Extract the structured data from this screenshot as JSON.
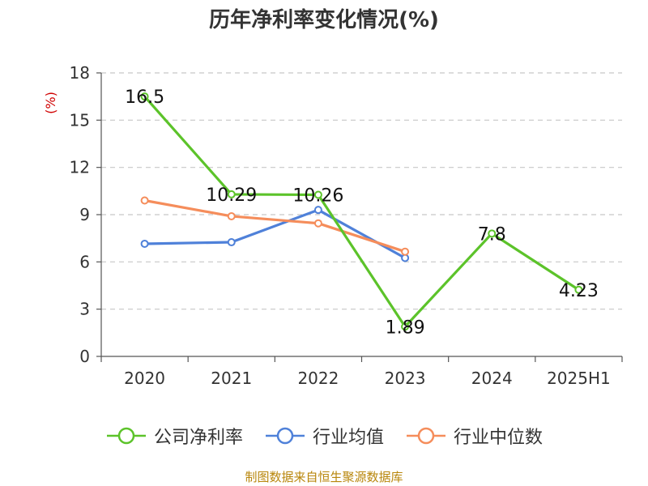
{
  "chart_data": {
    "type": "line",
    "title": "历年净利率变化情况(%)",
    "ylabel": "(%)",
    "xlabel": "",
    "categories": [
      "2020",
      "2021",
      "2022",
      "2023",
      "2024",
      "2025H1"
    ],
    "ylim": [
      0,
      18
    ],
    "yticks": [
      0,
      3,
      6,
      9,
      12,
      15,
      18
    ],
    "grid": true,
    "legend_position": "bottom",
    "series": [
      {
        "name": "公司净利率",
        "color": "#5cc32a",
        "values": [
          16.5,
          10.29,
          10.26,
          1.89,
          7.8,
          4.23
        ],
        "show_labels": true
      },
      {
        "name": "行业均值",
        "color": "#4f81d9",
        "values": [
          7.15,
          7.25,
          9.3,
          6.25,
          null,
          null
        ],
        "show_labels": false
      },
      {
        "name": "行业中位数",
        "color": "#f58d5b",
        "values": [
          9.9,
          8.9,
          8.45,
          6.65,
          null,
          null
        ],
        "show_labels": false
      }
    ]
  },
  "source_text": "制图数据来自恒生聚源数据库",
  "colors": {
    "axis": "#555555",
    "grid": "#c8c8c8",
    "ylabel": "#d00000",
    "source": "#b8860b"
  }
}
